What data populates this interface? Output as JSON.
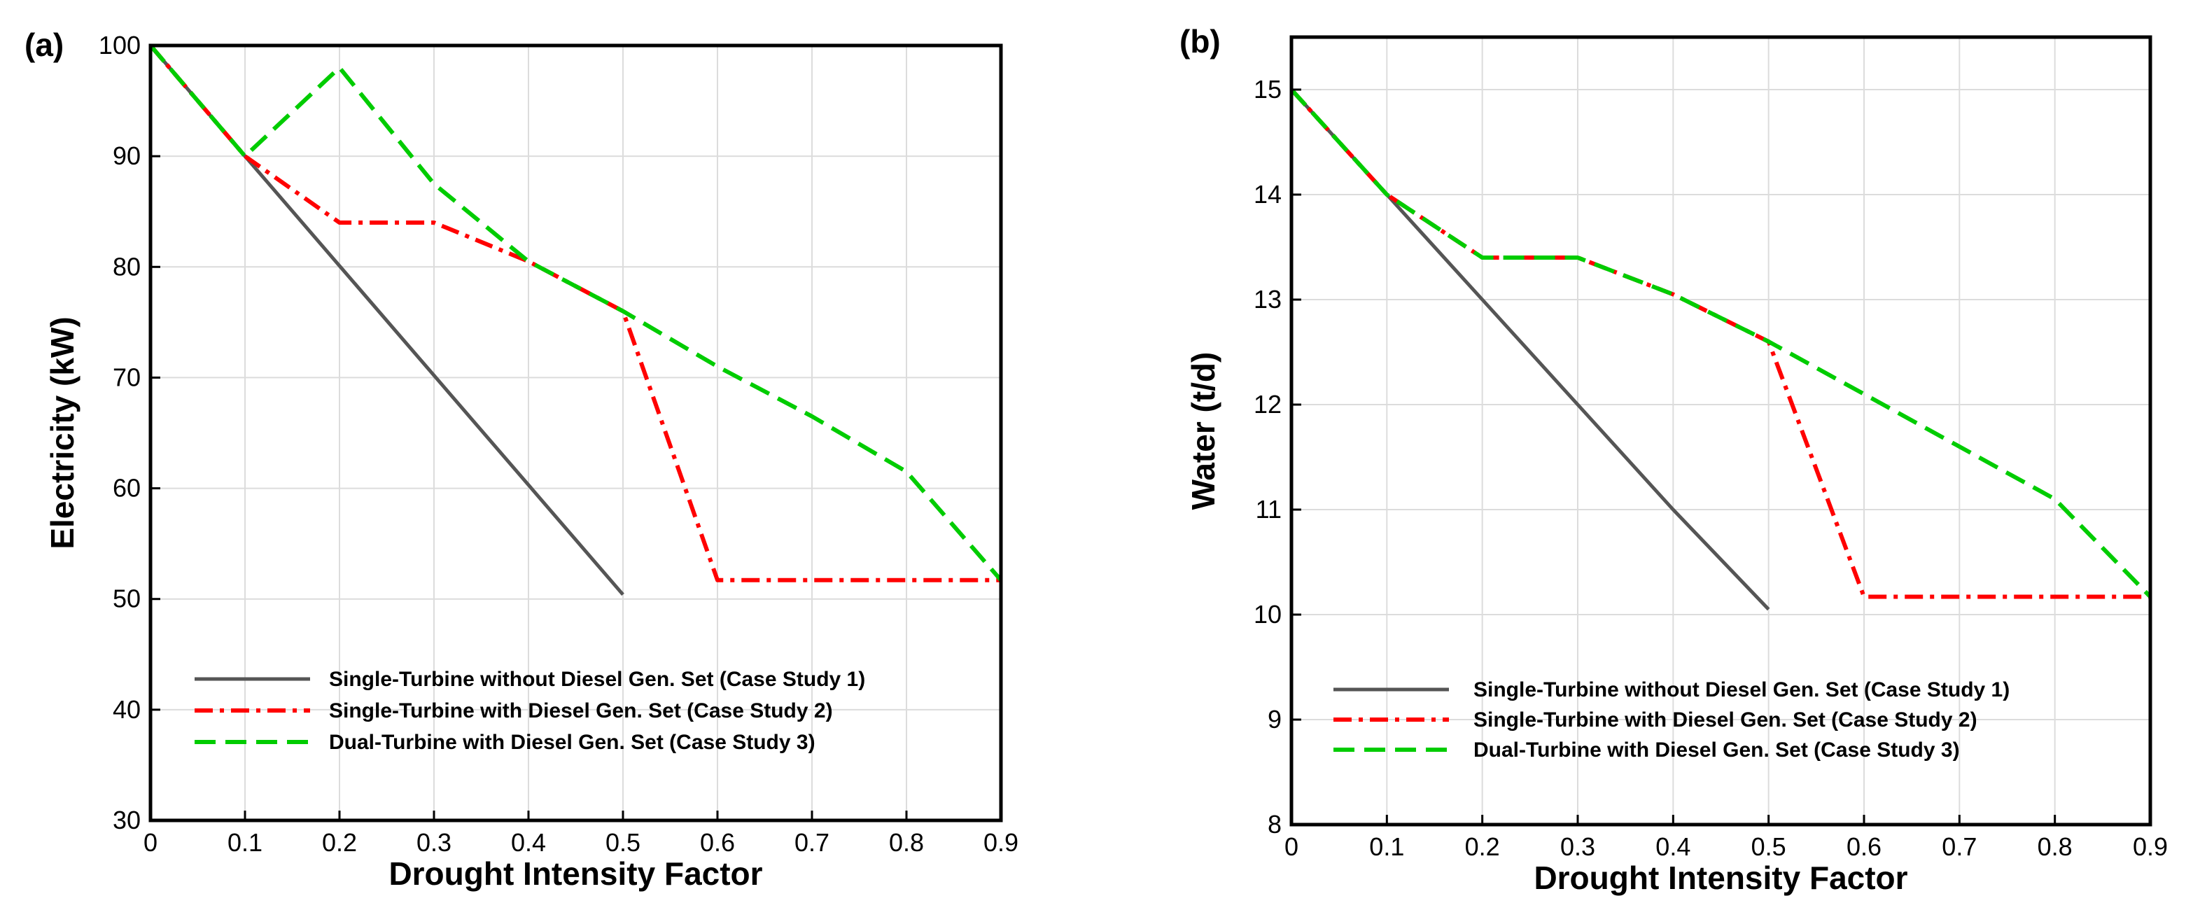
{
  "chart_data": [
    {
      "type": "line",
      "panel_label": "(a)",
      "title": "",
      "xlabel": "Drought Intensity Factor",
      "ylabel": "Electricity (kW)",
      "xlim": [
        0,
        0.9
      ],
      "ylim": [
        30,
        100
      ],
      "xticks": [
        "0",
        "0.1",
        "0.2",
        "0.3",
        "0.4",
        "0.5",
        "0.6",
        "0.7",
        "0.8",
        "0.9"
      ],
      "yticks": [
        "30",
        "40",
        "50",
        "60",
        "70",
        "80",
        "90",
        "100"
      ],
      "grid": true,
      "legend_position": "bottom-left",
      "series": [
        {
          "name": "Single-Turbine without Diesel Gen. Set  (Case Study 1)",
          "color": "#555555",
          "style": "solid",
          "x": [
            0,
            0.1,
            0.2,
            0.3,
            0.4,
            0.5
          ],
          "y": [
            100,
            90,
            80.1,
            70.2,
            60.3,
            50.4
          ]
        },
        {
          "name": "Single-Turbine with Diesel Gen. Set  (Case Study 2)",
          "color": "#ff0000",
          "style": "dashdot",
          "x": [
            0,
            0.1,
            0.2,
            0.3,
            0.4,
            0.5,
            0.6,
            0.7,
            0.8,
            0.9
          ],
          "y": [
            100,
            90,
            84,
            84,
            80.5,
            76,
            51.7,
            51.7,
            51.7,
            51.7
          ]
        },
        {
          "name": "Dual-Turbine with Diesel Gen. Set (Case Study 3)",
          "color": "#00cc00",
          "style": "dashed",
          "x": [
            0,
            0.1,
            0.2,
            0.3,
            0.4,
            0.5,
            0.6,
            0.7,
            0.8,
            0.9
          ],
          "y": [
            100,
            90,
            98,
            87.5,
            80.5,
            76,
            71,
            66.5,
            61.5,
            51.7
          ]
        }
      ]
    },
    {
      "type": "line",
      "panel_label": "(b)",
      "title": "",
      "xlabel": "Drought Intensity Factor",
      "ylabel": "Water (t/d)",
      "xlim": [
        0,
        0.9
      ],
      "ylim": [
        8,
        15.5
      ],
      "xticks": [
        "0",
        "0.1",
        "0.2",
        "0.3",
        "0.4",
        "0.5",
        "0.6",
        "0.7",
        "0.8",
        "0.9"
      ],
      "yticks": [
        "8",
        "9",
        "10",
        "11",
        "12",
        "13",
        "14",
        "15"
      ],
      "grid": true,
      "legend_position": "bottom-left",
      "series": [
        {
          "name": "Single-Turbine without Diesel Gen. Set  (Case Study 1)",
          "color": "#555555",
          "style": "solid",
          "x": [
            0,
            0.1,
            0.2,
            0.3,
            0.4,
            0.5
          ],
          "y": [
            15,
            14,
            13,
            12,
            11,
            10.05
          ]
        },
        {
          "name": "Single-Turbine with Diesel Gen. Set  (Case Study 2)",
          "color": "#ff0000",
          "style": "dashdot",
          "x": [
            0,
            0.1,
            0.2,
            0.3,
            0.4,
            0.5,
            0.6,
            0.7,
            0.8,
            0.9
          ],
          "y": [
            15,
            14,
            13.4,
            13.4,
            13.05,
            12.6,
            10.17,
            10.17,
            10.17,
            10.17
          ]
        },
        {
          "name": "Dual-Turbine with Diesel Gen. Set  (Case Study 3)",
          "color": "#00cc00",
          "style": "dashed",
          "x": [
            0,
            0.1,
            0.2,
            0.3,
            0.4,
            0.5,
            0.6,
            0.7,
            0.8,
            0.9
          ],
          "y": [
            15,
            14,
            13.4,
            13.4,
            13.05,
            12.6,
            12.1,
            11.6,
            11.1,
            10.17
          ]
        }
      ]
    }
  ]
}
